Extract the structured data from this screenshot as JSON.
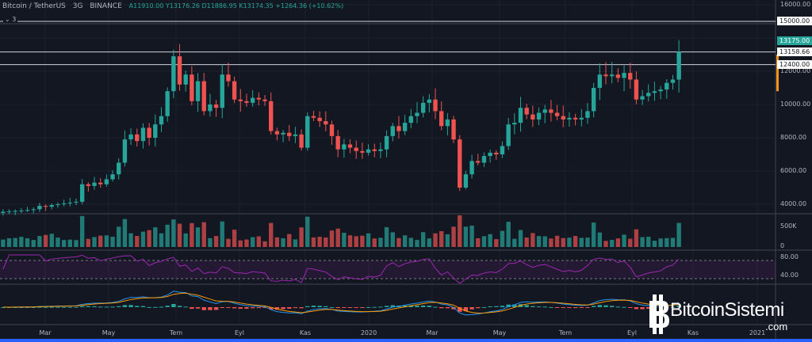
{
  "header": {
    "symbol": "Bitcoin / TetherUS",
    "interval": "3G",
    "exchange": "BINANCE",
    "ohlc": "A11910.00 Y13176.26 D11886.95 K13174.35 +1264.36 (+10.62%)",
    "collapsed_count": "3"
  },
  "colors": {
    "up": "#26a69a",
    "down": "#ef5350",
    "rsi": "#9c27b0",
    "macd": "#2196f3",
    "signal": "#ff9800",
    "bg": "#131722"
  },
  "chart_data": {
    "type": "candlestick",
    "price_axis": {
      "ylim": [
        3500,
        16500
      ],
      "ticks": [
        "16000.00",
        "12000.00",
        "10000.00",
        "8000.00",
        "6000.00",
        "4000.00"
      ]
    },
    "horizontal_lines": [
      {
        "price": 15000,
        "label": "15000.00"
      },
      {
        "price": 13158.66,
        "label": "13158.66"
      },
      {
        "price": 12400,
        "label": "12400.00"
      }
    ],
    "last_price": {
      "value": 13175,
      "label": "13175.00"
    },
    "closes": [
      3550,
      3580,
      3600,
      3620,
      3650,
      3700,
      3900,
      3850,
      3950,
      4000,
      4050,
      4100,
      4150,
      5200,
      5100,
      5300,
      5200,
      5500,
      5800,
      6500,
      7900,
      8200,
      7800,
      8600,
      8000,
      8800,
      9300,
      10800,
      12900,
      11200,
      11800,
      10200,
      11400,
      9600,
      10000,
      9800,
      11800,
      11400,
      10300,
      10200,
      10100,
      10400,
      10300,
      10200,
      8400,
      8200,
      8300,
      8100,
      8200,
      7400,
      9300,
      9200,
      9000,
      8800,
      8100,
      7300,
      7600,
      7400,
      7200,
      7100,
      7300,
      7200,
      7300,
      8100,
      8700,
      8400,
      8900,
      9300,
      9500,
      10100,
      10300,
      9600,
      8700,
      9100,
      7900,
      5000,
      5800,
      6600,
      6500,
      6900,
      7100,
      7000,
      7500,
      8800,
      8900,
      9800,
      9400,
      9100,
      9500,
      9700,
      9500,
      9300,
      9100,
      9200,
      9100,
      9200,
      9600,
      11000,
      11800,
      11700,
      11800,
      11600,
      11900,
      11500,
      10300,
      10500,
      10700,
      10800,
      10900,
      11300,
      11500,
      13175
    ],
    "volume_axis": {
      "ticks": [
        "500K",
        "0"
      ]
    },
    "rsi_axis": {
      "ticks": [
        "80.00",
        "40.00"
      ]
    },
    "time_labels": [
      "Mar",
      "May",
      "Tem",
      "Eyl",
      "Kas",
      "2020",
      "Mar",
      "May",
      "Tem",
      "Eyl",
      "Kas",
      "2021"
    ]
  },
  "watermark": {
    "name": "BitcoinSistemi",
    "suffix": ".com"
  }
}
